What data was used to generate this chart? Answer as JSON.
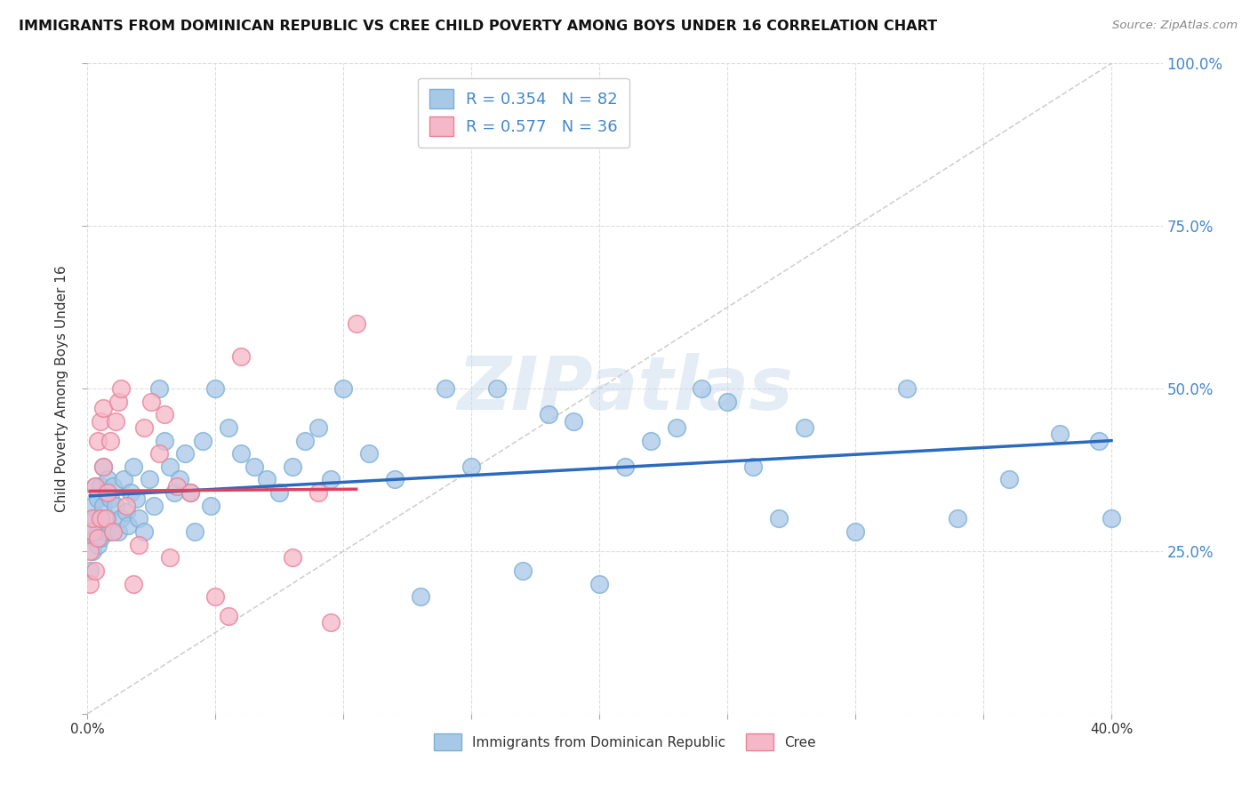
{
  "title": "IMMIGRANTS FROM DOMINICAN REPUBLIC VS CREE CHILD POVERTY AMONG BOYS UNDER 16 CORRELATION CHART",
  "source": "Source: ZipAtlas.com",
  "ylabel": "Child Poverty Among Boys Under 16",
  "xlim": [
    0.0,
    0.42
  ],
  "ylim": [
    0.0,
    1.0
  ],
  "blue_R": 0.354,
  "blue_N": 82,
  "pink_R": 0.577,
  "pink_N": 36,
  "blue_color": "#a8c8e8",
  "pink_color": "#f5b8c8",
  "blue_edge_color": "#7bafd4",
  "pink_edge_color": "#e88098",
  "blue_line_color": "#2a6abf",
  "pink_line_color": "#e04060",
  "diagonal_color": "#cccccc",
  "background_color": "#ffffff",
  "grid_color": "#dddddd",
  "title_color": "#111111",
  "source_color": "#888888",
  "right_tick_color": "#4488cc",
  "legend_label_blue": "Immigrants from Dominican Republic",
  "legend_label_pink": "Cree",
  "watermark": "ZIPatlas",
  "blue_scatter_x": [
    0.001,
    0.001,
    0.002,
    0.002,
    0.002,
    0.003,
    0.003,
    0.003,
    0.004,
    0.004,
    0.004,
    0.005,
    0.005,
    0.005,
    0.006,
    0.006,
    0.007,
    0.007,
    0.008,
    0.008,
    0.009,
    0.009,
    0.01,
    0.011,
    0.012,
    0.013,
    0.014,
    0.015,
    0.016,
    0.017,
    0.018,
    0.019,
    0.02,
    0.022,
    0.024,
    0.026,
    0.028,
    0.03,
    0.032,
    0.034,
    0.036,
    0.038,
    0.04,
    0.042,
    0.045,
    0.048,
    0.05,
    0.055,
    0.06,
    0.065,
    0.07,
    0.075,
    0.08,
    0.085,
    0.09,
    0.095,
    0.1,
    0.11,
    0.12,
    0.13,
    0.14,
    0.15,
    0.16,
    0.17,
    0.18,
    0.19,
    0.2,
    0.21,
    0.22,
    0.23,
    0.24,
    0.25,
    0.26,
    0.27,
    0.28,
    0.3,
    0.32,
    0.34,
    0.36,
    0.38,
    0.395,
    0.4
  ],
  "blue_scatter_y": [
    0.22,
    0.28,
    0.3,
    0.25,
    0.32,
    0.27,
    0.35,
    0.3,
    0.28,
    0.33,
    0.26,
    0.35,
    0.3,
    0.27,
    0.32,
    0.38,
    0.28,
    0.34,
    0.36,
    0.3,
    0.28,
    0.33,
    0.35,
    0.32,
    0.28,
    0.3,
    0.36,
    0.31,
    0.29,
    0.34,
    0.38,
    0.33,
    0.3,
    0.28,
    0.36,
    0.32,
    0.5,
    0.42,
    0.38,
    0.34,
    0.36,
    0.4,
    0.34,
    0.28,
    0.42,
    0.32,
    0.5,
    0.44,
    0.4,
    0.38,
    0.36,
    0.34,
    0.38,
    0.42,
    0.44,
    0.36,
    0.5,
    0.4,
    0.36,
    0.18,
    0.5,
    0.38,
    0.5,
    0.22,
    0.46,
    0.45,
    0.2,
    0.38,
    0.42,
    0.44,
    0.5,
    0.48,
    0.38,
    0.3,
    0.44,
    0.28,
    0.5,
    0.3,
    0.36,
    0.43,
    0.42,
    0.3
  ],
  "pink_scatter_x": [
    0.001,
    0.001,
    0.002,
    0.002,
    0.003,
    0.003,
    0.004,
    0.004,
    0.005,
    0.005,
    0.006,
    0.006,
    0.007,
    0.008,
    0.009,
    0.01,
    0.011,
    0.012,
    0.013,
    0.015,
    0.018,
    0.02,
    0.022,
    0.025,
    0.028,
    0.03,
    0.032,
    0.035,
    0.04,
    0.05,
    0.055,
    0.06,
    0.08,
    0.09,
    0.095,
    0.105
  ],
  "pink_scatter_y": [
    0.2,
    0.25,
    0.28,
    0.3,
    0.22,
    0.35,
    0.27,
    0.42,
    0.3,
    0.45,
    0.38,
    0.47,
    0.3,
    0.34,
    0.42,
    0.28,
    0.45,
    0.48,
    0.5,
    0.32,
    0.2,
    0.26,
    0.44,
    0.48,
    0.4,
    0.46,
    0.24,
    0.35,
    0.34,
    0.18,
    0.15,
    0.55,
    0.24,
    0.34,
    0.14,
    0.6
  ]
}
